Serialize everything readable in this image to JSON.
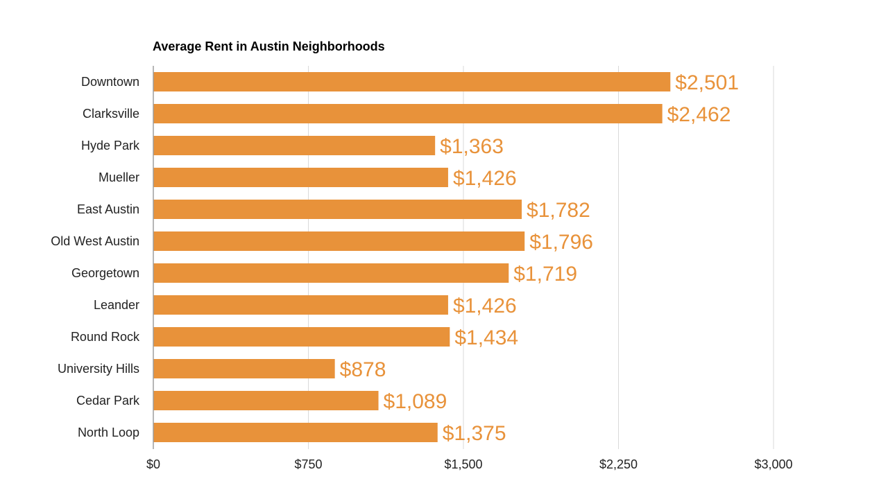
{
  "chart_data": {
    "type": "bar",
    "orientation": "horizontal",
    "title": "Average Rent in Austin Neighborhoods",
    "xlabel": "",
    "ylabel": "",
    "categories": [
      "Downtown",
      "Clarksville",
      "Hyde Park",
      "Mueller",
      "East Austin",
      "Old West Austin",
      "Georgetown",
      "Leander",
      "Round Rock",
      "University Hills",
      "Cedar Park",
      "North Loop"
    ],
    "values": [
      2501,
      2462,
      1363,
      1426,
      1782,
      1796,
      1719,
      1426,
      1434,
      878,
      1089,
      1375
    ],
    "value_labels": [
      "$2,501",
      "$2,462",
      "$1,363",
      "$1,426",
      "$1,782",
      "$1,796",
      "$1,719",
      "$1,426",
      "$1,434",
      "$878",
      "$1,089",
      "$1,375"
    ],
    "xlim": [
      0,
      3000
    ],
    "ticks": [
      0,
      750,
      1500,
      2250,
      3000
    ],
    "tick_labels": [
      "$0",
      "$750",
      "$1,500",
      "$2,250",
      "$3,000"
    ],
    "grid": true,
    "legend": "none",
    "bar_color": "#E8923A",
    "label_color": "#E8923A"
  }
}
